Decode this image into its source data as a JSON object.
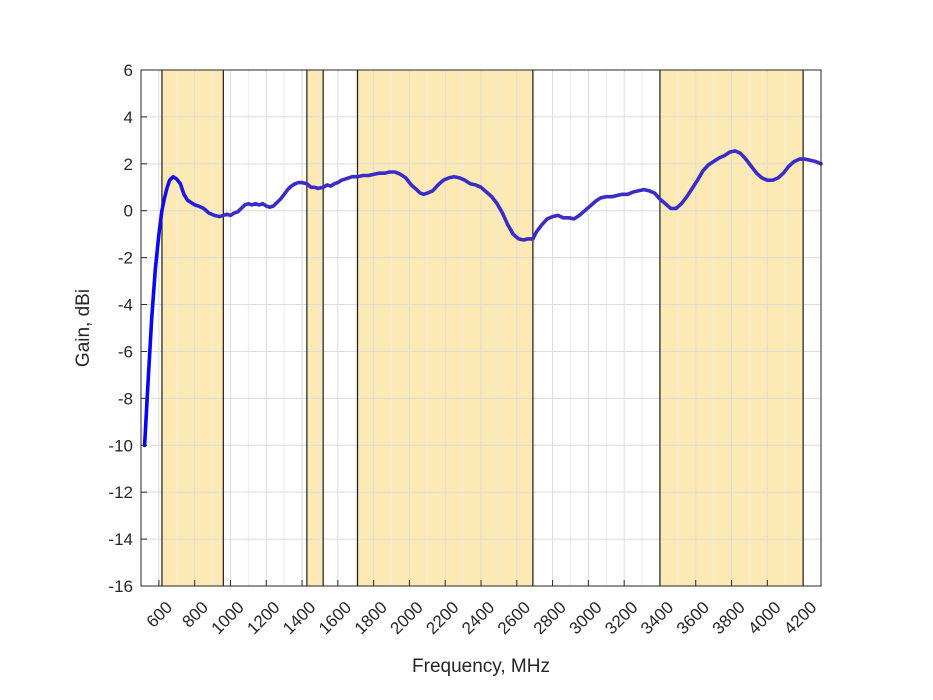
{
  "chart_data": {
    "type": "line",
    "xlabel": "Frequency, MHz",
    "ylabel": "Gain, dBi",
    "xlim": [
      500,
      4300
    ],
    "ylim": [
      -16,
      6
    ],
    "xticks": [
      600,
      800,
      1000,
      1200,
      1400,
      1600,
      1800,
      2000,
      2200,
      2400,
      2600,
      2800,
      3000,
      3200,
      3400,
      3600,
      3800,
      4000,
      4200
    ],
    "xtick_labels": [
      "600",
      "800",
      "1000",
      "1200",
      "1400",
      "1600",
      "1800",
      "2000",
      "2200",
      "2400",
      "2600",
      "2800",
      "3000",
      "3200",
      "3400",
      "3600",
      "3800",
      "4000",
      "4200"
    ],
    "yticks": [
      -16,
      -14,
      -12,
      -10,
      -8,
      -6,
      -4,
      -2,
      0,
      2,
      4,
      6
    ],
    "ytick_labels": [
      "-16",
      "-14",
      "-12",
      "-10",
      "-8",
      "-6",
      "-4",
      "-2",
      "0",
      "2",
      "4",
      "6"
    ],
    "grid": true,
    "bands": [
      {
        "start": 617,
        "end": 960
      },
      {
        "start": 1427,
        "end": 1518
      },
      {
        "start": 1710,
        "end": 2690
      },
      {
        "start": 3400,
        "end": 4200
      }
    ],
    "colors": {
      "band_fill": "#fde9b3",
      "band_edge": "#1a1a1a",
      "line_low": "#0000ff",
      "line_high": "#3a2cc8",
      "grid": "#dcdcdc"
    },
    "series": [
      {
        "x": [
          520,
          540,
          560,
          580,
          600,
          617,
          630,
          645,
          660,
          680,
          700,
          720,
          740,
          760,
          780,
          800,
          820,
          850,
          880,
          910,
          940,
          960,
          980,
          1000,
          1020,
          1040,
          1060,
          1080,
          1100,
          1120,
          1140,
          1160,
          1180,
          1200,
          1220,
          1240,
          1260,
          1280,
          1300,
          1320,
          1340,
          1360,
          1380,
          1400,
          1427,
          1450,
          1470,
          1490,
          1518,
          1540,
          1560,
          1580,
          1600,
          1620,
          1640,
          1660,
          1680,
          1710,
          1740,
          1770,
          1800,
          1830,
          1860,
          1890,
          1920,
          1950,
          1980,
          2010,
          2040,
          2060,
          2080,
          2100,
          2130,
          2160,
          2190,
          2220,
          2250,
          2280,
          2310,
          2340,
          2370,
          2400,
          2430,
          2460,
          2490,
          2520,
          2550,
          2580,
          2610,
          2640,
          2660,
          2690,
          2710,
          2740,
          2770,
          2800,
          2830,
          2860,
          2890,
          2920,
          2950,
          2980,
          3010,
          3040,
          3070,
          3100,
          3130,
          3160,
          3190,
          3220,
          3250,
          3280,
          3310,
          3340,
          3370,
          3400,
          3430,
          3460,
          3490,
          3520,
          3550,
          3580,
          3610,
          3640,
          3670,
          3700,
          3730,
          3760,
          3790,
          3820,
          3850,
          3880,
          3910,
          3940,
          3970,
          4000,
          4030,
          4060,
          4090,
          4120,
          4150,
          4180,
          4210,
          4240,
          4270,
          4300
        ],
        "y": [
          -10.0,
          -7.2,
          -4.6,
          -2.5,
          -1.0,
          0.0,
          0.5,
          0.95,
          1.3,
          1.45,
          1.35,
          1.15,
          0.7,
          0.45,
          0.35,
          0.25,
          0.2,
          0.1,
          -0.1,
          -0.2,
          -0.25,
          -0.2,
          -0.15,
          -0.2,
          -0.1,
          -0.05,
          0.1,
          0.25,
          0.3,
          0.25,
          0.3,
          0.25,
          0.3,
          0.2,
          0.15,
          0.2,
          0.35,
          0.5,
          0.7,
          0.9,
          1.05,
          1.15,
          1.2,
          1.2,
          1.15,
          1.0,
          1.0,
          0.95,
          1.0,
          1.1,
          1.05,
          1.15,
          1.2,
          1.3,
          1.35,
          1.4,
          1.45,
          1.45,
          1.5,
          1.5,
          1.55,
          1.6,
          1.6,
          1.65,
          1.65,
          1.55,
          1.4,
          1.1,
          0.9,
          0.75,
          0.7,
          0.75,
          0.85,
          1.1,
          1.3,
          1.4,
          1.45,
          1.4,
          1.3,
          1.15,
          1.1,
          1.0,
          0.8,
          0.6,
          0.3,
          -0.1,
          -0.6,
          -1.0,
          -1.2,
          -1.25,
          -1.2,
          -1.2,
          -0.9,
          -0.6,
          -0.35,
          -0.25,
          -0.2,
          -0.3,
          -0.3,
          -0.35,
          -0.2,
          0.0,
          0.2,
          0.4,
          0.55,
          0.6,
          0.6,
          0.65,
          0.7,
          0.7,
          0.8,
          0.85,
          0.9,
          0.85,
          0.75,
          0.5,
          0.3,
          0.1,
          0.1,
          0.3,
          0.6,
          0.95,
          1.3,
          1.7,
          1.95,
          2.1,
          2.25,
          2.35,
          2.5,
          2.55,
          2.45,
          2.2,
          1.9,
          1.6,
          1.4,
          1.3,
          1.3,
          1.4,
          1.6,
          1.9,
          2.1,
          2.2,
          2.2,
          2.15,
          2.1,
          2.0
        ]
      }
    ]
  }
}
